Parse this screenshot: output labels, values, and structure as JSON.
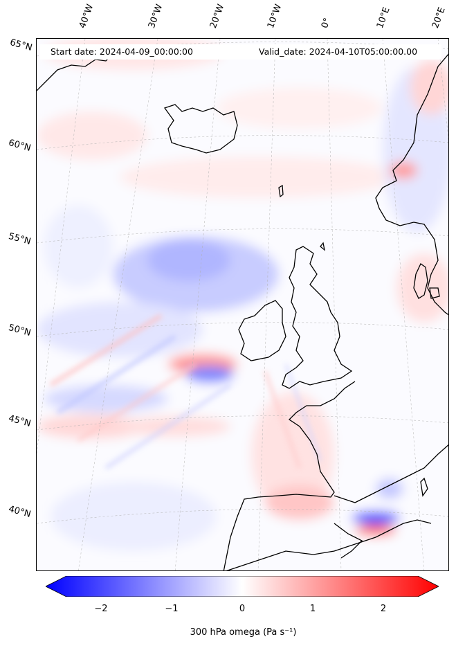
{
  "header": {
    "start_date": "Start date: 2024-04-09_00:00:00",
    "valid_date": "Valid_date: 2024-04-10T05:00:00.00"
  },
  "map": {
    "longitude_labels": [
      "40°W",
      "30°W",
      "20°W",
      "10°W",
      "0°",
      "10°E",
      "20°E"
    ],
    "latitude_labels": [
      "65°N",
      "60°N",
      "55°N",
      "50°N",
      "45°N",
      "40°N"
    ],
    "colors": {
      "negative": "#0000ff",
      "neutral": "#ffffff",
      "positive": "#ff0000",
      "coast": "#000000",
      "grid": "#b0b0b0"
    }
  },
  "colorbar": {
    "title": "300 hPa omega (Pa s⁻¹)",
    "ticks": [
      "−2",
      "−1",
      "0",
      "1",
      "2"
    ],
    "min": -2.5,
    "max": 2.5,
    "tick_values": [
      -2,
      -1,
      0,
      1,
      2
    ]
  }
}
